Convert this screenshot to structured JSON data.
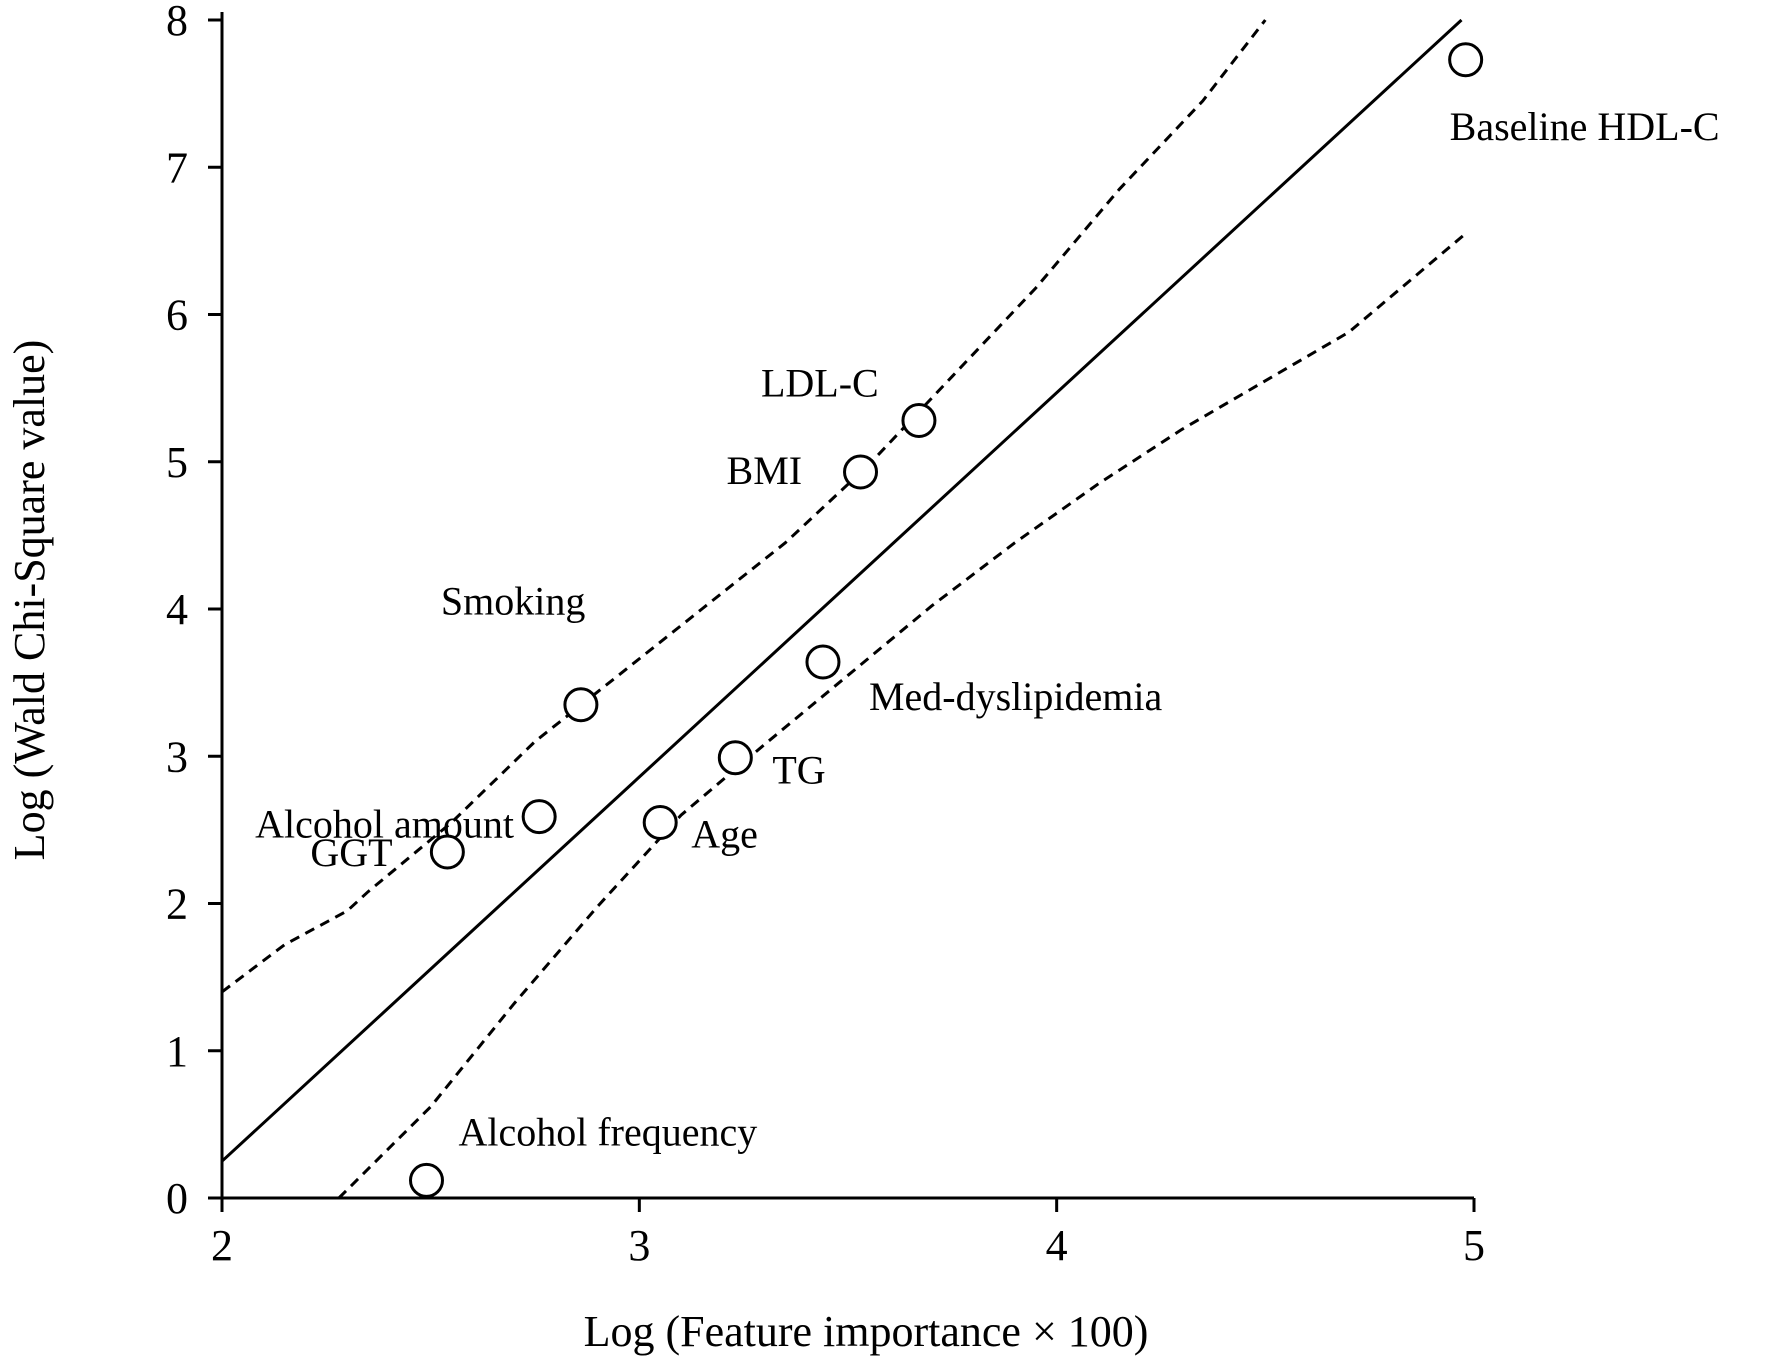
{
  "chart_data": {
    "type": "scatter",
    "title": "",
    "xlabel": "Log (Feature importance × 100)",
    "ylabel": "Log (Wald Chi-Square value)",
    "xlim": [
      2,
      5
    ],
    "ylim": [
      0,
      8
    ],
    "xticks": [
      "2",
      "3",
      "4",
      "5"
    ],
    "yticks": [
      "0",
      "1",
      "2",
      "3",
      "4",
      "5",
      "6",
      "7",
      "8"
    ],
    "grid": false,
    "points": [
      {
        "label": "Baseline HDL-C",
        "x": 4.98,
        "y": 7.73
      },
      {
        "label": "LDL-C",
        "x": 3.67,
        "y": 5.28
      },
      {
        "label": "BMI",
        "x": 3.53,
        "y": 4.93
      },
      {
        "label": "Med-dyslipidemia",
        "x": 3.44,
        "y": 3.64
      },
      {
        "label": "Smoking",
        "x": 2.86,
        "y": 3.35
      },
      {
        "label": "Alcohol amount",
        "x": 2.76,
        "y": 2.59
      },
      {
        "label": "TG",
        "x": 3.23,
        "y": 2.99
      },
      {
        "label": "Age",
        "x": 3.05,
        "y": 2.55
      },
      {
        "label": "GGT",
        "x": 2.54,
        "y": 2.35
      },
      {
        "label": "Alcohol frequency",
        "x": 2.49,
        "y": 0.12
      }
    ],
    "regression_line": {
      "style": "solid",
      "x": [
        2.0,
        4.97
      ],
      "y": [
        0.25,
        8.0
      ]
    },
    "upper_band": {
      "style": "dashed",
      "x": [
        2.0,
        2.15,
        2.3,
        2.35,
        2.55,
        2.75,
        2.95,
        3.15,
        3.35,
        3.55,
        3.75,
        3.95,
        4.15,
        4.35,
        4.5
      ],
      "y": [
        1.4,
        1.72,
        1.95,
        2.08,
        2.55,
        3.1,
        3.55,
        4.0,
        4.45,
        4.98,
        5.58,
        6.18,
        6.85,
        7.45,
        8.0
      ]
    },
    "lower_band": {
      "style": "dashed",
      "x": [
        2.28,
        2.5,
        2.7,
        2.9,
        3.1,
        3.3,
        3.5,
        3.7,
        3.9,
        4.1,
        4.3,
        4.5,
        4.7,
        4.98
      ],
      "y": [
        0.0,
        0.62,
        1.32,
        1.98,
        2.6,
        3.08,
        3.55,
        4.02,
        4.45,
        4.85,
        5.22,
        5.55,
        5.88,
        6.55
      ]
    }
  }
}
